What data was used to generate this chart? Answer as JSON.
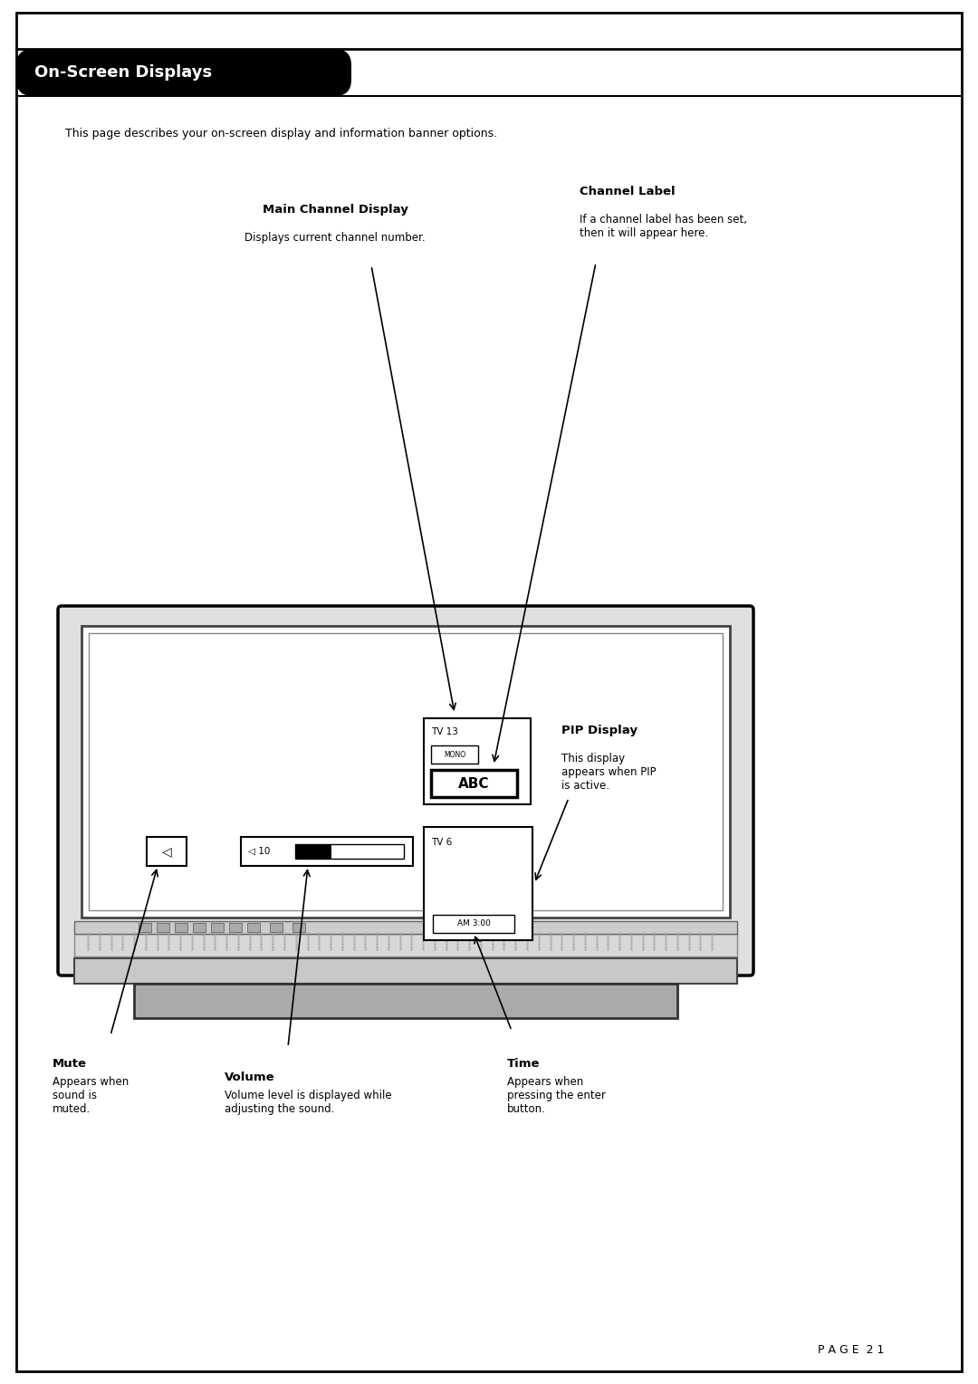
{
  "page_title": "On-Screen Displays",
  "page_number": "P A G E  2 1",
  "intro_text": "This page describes your on-screen display and information banner options.",
  "bg_color": "#ffffff",
  "labels": {
    "main_channel_title": "Main Channel Display",
    "main_channel_desc": "Displays current channel number.",
    "channel_label_title": "Channel Label",
    "channel_label_desc": "If a channel label has been set,\nthen it will appear here.",
    "pip_title": "PIP Display",
    "pip_desc": "This display\nappears when PIP\nis active.",
    "mute_title": "Mute",
    "mute_desc": "Appears when\nsound is\nmuted.",
    "volume_title": "Volume",
    "volume_desc": "Volume level is displayed while\nadjusting the sound.",
    "time_title": "Time",
    "time_desc": "Appears when\npressing the enter\nbutton."
  }
}
